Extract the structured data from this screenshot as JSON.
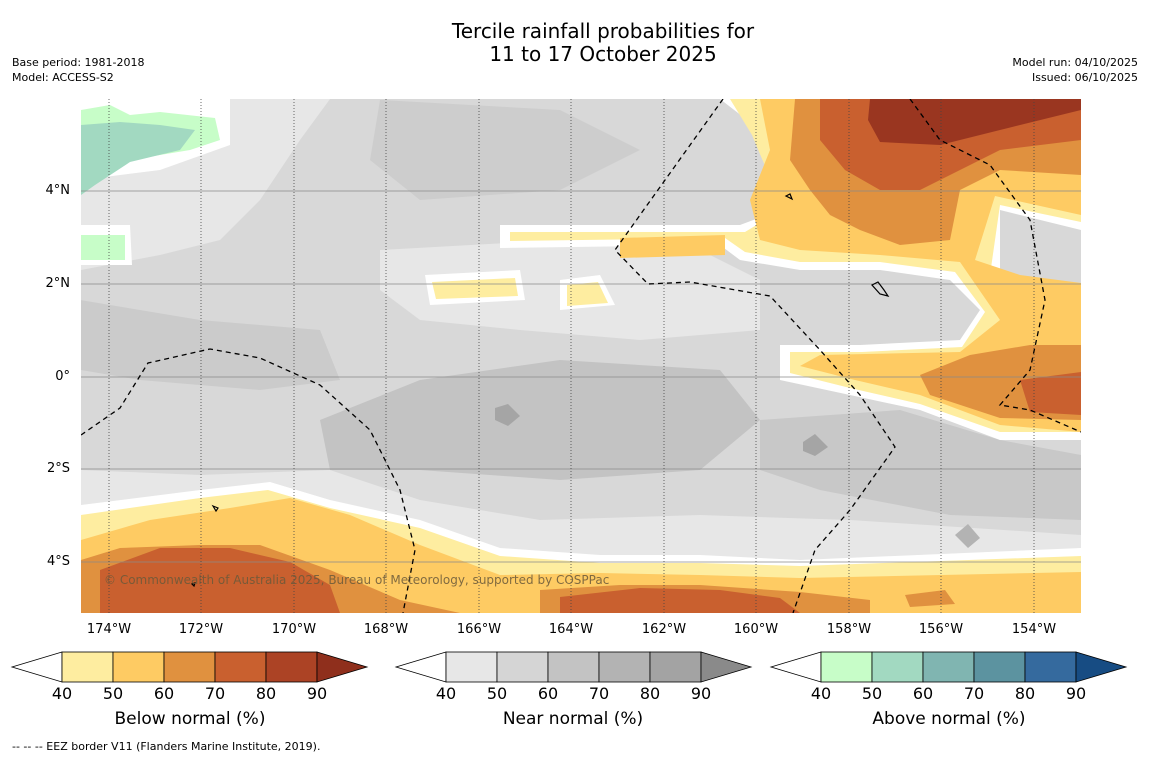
{
  "title_line1": "Tercile rainfall probabilities for",
  "title_line2": "11 to 17 October 2025",
  "meta_left": {
    "base_period": "Base period: 1981-2018",
    "model": "Model: ACCESS-S2"
  },
  "meta_right": {
    "model_run": "Model run: 04/10/2025",
    "issued": "Issued: 06/10/2025"
  },
  "copyright": "© Commonwealth of Australia 2025, Bureau of Meteorology, supported by COSPPac",
  "y_axis_labels": [
    "4°N",
    "2°N",
    "0°",
    "2°S",
    "4°S"
  ],
  "x_axis_labels": [
    "174°W",
    "172°W",
    "170°W",
    "168°W",
    "166°W",
    "164°W",
    "162°W",
    "160°W",
    "158°W",
    "156°W",
    "154°W"
  ],
  "colorbars": [
    {
      "title": "Below normal (%)",
      "ticks": [
        "40",
        "50",
        "60",
        "70",
        "80",
        "90"
      ],
      "colors": [
        "#ffffff",
        "#feeda0",
        "#fecb63",
        "#e0913f",
        "#c9602f",
        "#ac4325",
        "#8f2f1c"
      ]
    },
    {
      "title": "Near normal (%)",
      "ticks": [
        "40",
        "50",
        "60",
        "70",
        "80",
        "90"
      ],
      "colors": [
        "#ffffff",
        "#e7e7e7",
        "#d5d5d5",
        "#c3c3c3",
        "#b3b3b3",
        "#a3a3a3",
        "#8a8a8a"
      ]
    },
    {
      "title": "Above normal (%)",
      "ticks": [
        "40",
        "50",
        "60",
        "70",
        "80",
        "90"
      ],
      "colors": [
        "#ffffff",
        "#c7fdc8",
        "#a2d9c1",
        "#80b5b1",
        "#5c93a0",
        "#356a9e",
        "#174c83"
      ]
    }
  ],
  "eez_note": "--  --  -- EEZ border V11 (Flanders Marine Institute, 2019)."
}
